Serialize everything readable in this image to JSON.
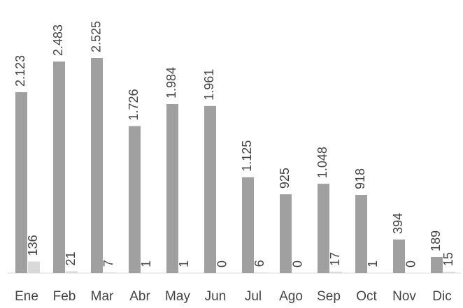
{
  "chart_data": {
    "type": "bar",
    "categories": [
      "Ene",
      "Feb",
      "Mar",
      "Abr",
      "May",
      "Jun",
      "Jul",
      "Ago",
      "Sep",
      "Oct",
      "Nov",
      "Dic"
    ],
    "series": [
      {
        "color": "#a0a0a0",
        "values": [
          2123,
          2483,
          2525,
          1726,
          1984,
          1961,
          1125,
          925,
          1048,
          918,
          394,
          189
        ],
        "value_labels": [
          "2.123",
          "2.483",
          "2.525",
          "1.726",
          "1.984",
          "1.961",
          "1.125",
          "925",
          "1.048",
          "918",
          "394",
          "189"
        ]
      },
      {
        "color": "#d9d9d9",
        "values": [
          136,
          21,
          7,
          1,
          1,
          0,
          6,
          0,
          17,
          1,
          0,
          15
        ]
      }
    ]
  }
}
